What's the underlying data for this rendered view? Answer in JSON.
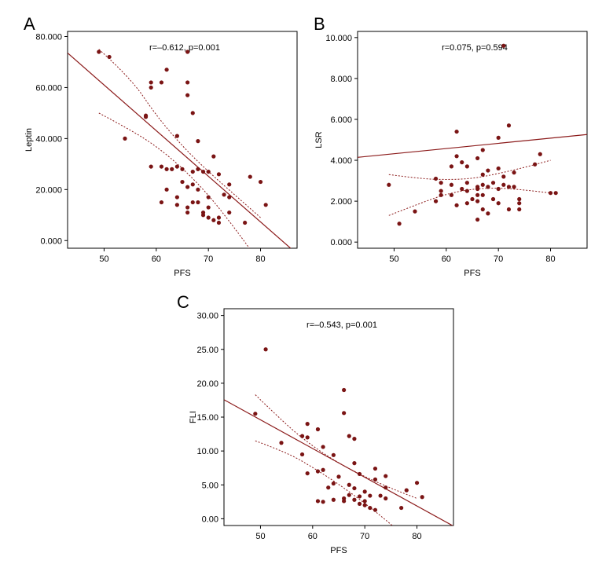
{
  "colors": {
    "points": "#7a1414",
    "fit_line": "#8b1a1a",
    "axes": "#000000"
  },
  "chart_data": [
    {
      "panel": "A",
      "type": "scatter",
      "annotation": "r=–0.612, p=0.001",
      "xlabel": "PFS",
      "ylabel": "Leptin",
      "xlim": [
        43,
        87
      ],
      "ylim": [
        -3,
        82
      ],
      "xticks": [
        50,
        60,
        70,
        80
      ],
      "xtick_labels": [
        "50",
        "60",
        "70",
        "80"
      ],
      "yticks": [
        0,
        20,
        40,
        60,
        80
      ],
      "ytick_labels": [
        "0.000",
        "20.000",
        "40.000",
        "60.000",
        "80.000"
      ],
      "fit": {
        "slope": -1.79,
        "intercept": 150.5
      },
      "ci_lower": [
        [
          49,
          50
        ],
        [
          55,
          43.5
        ],
        [
          60,
          37
        ],
        [
          65,
          28.5
        ],
        [
          70,
          18
        ],
        [
          75,
          5
        ],
        [
          80,
          -9
        ]
      ],
      "ci_upper": [
        [
          49,
          75
        ],
        [
          55,
          64
        ],
        [
          60,
          49
        ],
        [
          65,
          37
        ],
        [
          70,
          27
        ],
        [
          75,
          18
        ],
        [
          80,
          9
        ]
      ],
      "points": [
        [
          49,
          74
        ],
        [
          51,
          72
        ],
        [
          54,
          40
        ],
        [
          58,
          49
        ],
        [
          58,
          48.5
        ],
        [
          59,
          62
        ],
        [
          59,
          60
        ],
        [
          59,
          29
        ],
        [
          61,
          62
        ],
        [
          61,
          29
        ],
        [
          61,
          15
        ],
        [
          62,
          67
        ],
        [
          62,
          28
        ],
        [
          62,
          20
        ],
        [
          63,
          28
        ],
        [
          64,
          41
        ],
        [
          64,
          29
        ],
        [
          64,
          17
        ],
        [
          64,
          14
        ],
        [
          65,
          28
        ],
        [
          65,
          23
        ],
        [
          66,
          74
        ],
        [
          66,
          62
        ],
        [
          66,
          57
        ],
        [
          66,
          21
        ],
        [
          66,
          13
        ],
        [
          66,
          11
        ],
        [
          67,
          50
        ],
        [
          67,
          27
        ],
        [
          67,
          22
        ],
        [
          67,
          15
        ],
        [
          68,
          39
        ],
        [
          68,
          28
        ],
        [
          68,
          20
        ],
        [
          68,
          15
        ],
        [
          69,
          27
        ],
        [
          69,
          11
        ],
        [
          69,
          10
        ],
        [
          70,
          27
        ],
        [
          70,
          17
        ],
        [
          70,
          13
        ],
        [
          70,
          9
        ],
        [
          71,
          33
        ],
        [
          71,
          8
        ],
        [
          72,
          26
        ],
        [
          72,
          9
        ],
        [
          72,
          7
        ],
        [
          73,
          18
        ],
        [
          74,
          22
        ],
        [
          74,
          17
        ],
        [
          74,
          11
        ],
        [
          77,
          7
        ],
        [
          78,
          25
        ],
        [
          80,
          23
        ],
        [
          81,
          14
        ]
      ]
    },
    {
      "panel": "B",
      "type": "scatter",
      "annotation": "r=0.075, p=0.594",
      "xlabel": "PFS",
      "ylabel": "LSR",
      "xlim": [
        43,
        87
      ],
      "ylim": [
        -0.3,
        10.3
      ],
      "xticks": [
        50,
        60,
        70,
        80
      ],
      "xtick_labels": [
        "50",
        "60",
        "70",
        "80"
      ],
      "yticks": [
        0,
        2,
        4,
        6,
        8,
        10
      ],
      "ytick_labels": [
        "0.000",
        "2.000",
        "4.000",
        "6.000",
        "8.000",
        "10.000"
      ],
      "fit": {
        "slope": 0.0254,
        "intercept": 3.05
      },
      "ci_lower": [
        [
          49,
          1.3
        ],
        [
          55,
          1.9
        ],
        [
          60,
          2.35
        ],
        [
          65,
          2.6
        ],
        [
          70,
          2.65
        ],
        [
          75,
          2.55
        ],
        [
          80,
          2.4
        ]
      ],
      "ci_upper": [
        [
          49,
          3.3
        ],
        [
          55,
          3.1
        ],
        [
          60,
          3.05
        ],
        [
          65,
          3.1
        ],
        [
          70,
          3.35
        ],
        [
          75,
          3.65
        ],
        [
          80,
          4.0
        ]
      ],
      "points": [
        [
          49,
          2.8
        ],
        [
          51,
          0.9
        ],
        [
          54,
          1.5
        ],
        [
          58,
          3.1
        ],
        [
          58,
          2.0
        ],
        [
          59,
          2.9
        ],
        [
          59,
          2.5
        ],
        [
          59,
          2.3
        ],
        [
          61,
          3.7
        ],
        [
          61,
          2.8
        ],
        [
          61,
          2.3
        ],
        [
          62,
          5.4
        ],
        [
          62,
          4.2
        ],
        [
          62,
          1.8
        ],
        [
          63,
          3.9
        ],
        [
          63,
          2.6
        ],
        [
          64,
          3.7
        ],
        [
          64,
          2.9
        ],
        [
          64,
          1.9
        ],
        [
          64,
          2.5
        ],
        [
          65,
          2.1
        ],
        [
          66,
          4.1
        ],
        [
          66,
          2.7
        ],
        [
          66,
          2.3
        ],
        [
          66,
          2.0
        ],
        [
          66,
          1.1
        ],
        [
          66,
          2.6
        ],
        [
          67,
          4.5
        ],
        [
          67,
          3.3
        ],
        [
          67,
          2.3
        ],
        [
          67,
          1.6
        ],
        [
          67,
          2.8
        ],
        [
          68,
          3.5
        ],
        [
          68,
          2.7
        ],
        [
          68,
          1.4
        ],
        [
          69,
          2.9
        ],
        [
          69,
          2.1
        ],
        [
          70,
          5.1
        ],
        [
          70,
          3.6
        ],
        [
          70,
          2.6
        ],
        [
          70,
          1.9
        ],
        [
          71,
          9.6
        ],
        [
          71,
          3.2
        ],
        [
          71,
          2.8
        ],
        [
          72,
          5.7
        ],
        [
          72,
          2.7
        ],
        [
          72,
          1.6
        ],
        [
          73,
          3.4
        ],
        [
          73,
          2.7
        ],
        [
          74,
          2.1
        ],
        [
          74,
          1.9
        ],
        [
          74,
          1.6
        ],
        [
          77,
          3.8
        ],
        [
          78,
          4.3
        ],
        [
          80,
          2.4
        ],
        [
          81,
          2.4
        ]
      ]
    },
    {
      "panel": "C",
      "type": "scatter",
      "annotation": "r=–0.543, p=0.001",
      "xlabel": "PFS",
      "ylabel": "FLI",
      "xlim": [
        43,
        87
      ],
      "ylim": [
        -1,
        31
      ],
      "xticks": [
        50,
        60,
        70,
        80
      ],
      "xtick_labels": [
        "50",
        "60",
        "70",
        "80"
      ],
      "yticks": [
        0,
        5,
        10,
        15,
        20,
        25,
        30
      ],
      "ytick_labels": [
        "0.00",
        "5.00",
        "10.00",
        "15.00",
        "20.00",
        "25.00",
        "30.00"
      ],
      "fit": {
        "slope": -0.424,
        "intercept": 35.8
      },
      "ci_lower": [
        [
          49,
          11.5
        ],
        [
          55,
          9.8
        ],
        [
          60,
          7.6
        ],
        [
          65,
          5.1
        ],
        [
          70,
          2.3
        ],
        [
          75,
          -0.8
        ],
        [
          80,
          -4.1
        ]
      ],
      "ci_upper": [
        [
          49,
          18.3
        ],
        [
          55,
          13.8
        ],
        [
          60,
          10.7
        ],
        [
          65,
          8.2
        ],
        [
          70,
          6.2
        ],
        [
          75,
          4.5
        ],
        [
          80,
          3.0
        ]
      ],
      "points": [
        [
          49,
          15.5
        ],
        [
          51,
          25.0
        ],
        [
          54,
          11.2
        ],
        [
          58,
          12.2
        ],
        [
          58,
          9.5
        ],
        [
          59,
          14.0
        ],
        [
          59,
          12.0
        ],
        [
          59,
          6.7
        ],
        [
          61,
          13.2
        ],
        [
          61,
          7.0
        ],
        [
          61,
          2.6
        ],
        [
          62,
          10.6
        ],
        [
          62,
          7.2
        ],
        [
          62,
          2.5
        ],
        [
          63,
          4.6
        ],
        [
          64,
          9.4
        ],
        [
          64,
          5.2
        ],
        [
          64,
          2.8
        ],
        [
          65,
          6.2
        ],
        [
          66,
          19.0
        ],
        [
          66,
          15.6
        ],
        [
          66,
          3.0
        ],
        [
          66,
          2.6
        ],
        [
          67,
          12.2
        ],
        [
          67,
          5.0
        ],
        [
          67,
          3.5
        ],
        [
          68,
          11.8
        ],
        [
          68,
          8.2
        ],
        [
          68,
          4.5
        ],
        [
          68,
          2.8
        ],
        [
          69,
          6.6
        ],
        [
          69,
          3.3
        ],
        [
          69,
          2.2
        ],
        [
          70,
          4.0
        ],
        [
          70,
          2.6
        ],
        [
          70,
          2.0
        ],
        [
          71,
          3.4
        ],
        [
          71,
          1.6
        ],
        [
          72,
          7.4
        ],
        [
          72,
          5.8
        ],
        [
          72,
          1.3
        ],
        [
          73,
          3.4
        ],
        [
          74,
          6.3
        ],
        [
          74,
          4.6
        ],
        [
          74,
          3.0
        ],
        [
          77,
          1.6
        ],
        [
          78,
          4.2
        ],
        [
          80,
          5.3
        ],
        [
          81,
          3.2
        ]
      ]
    }
  ],
  "panel_letters": [
    "A",
    "B",
    "C"
  ]
}
